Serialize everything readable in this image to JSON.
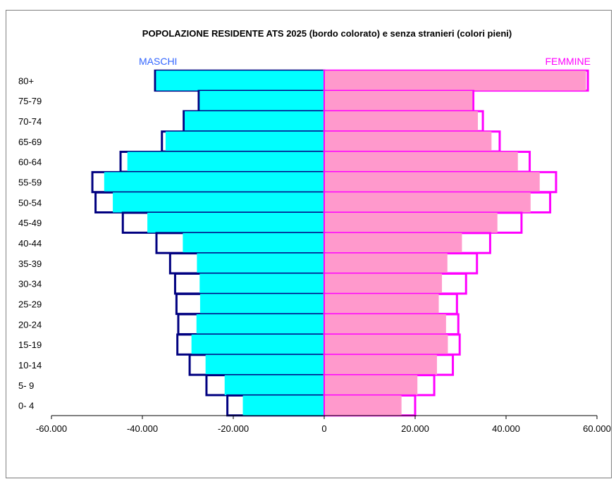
{
  "colors": {
    "male_fill": "#00FFFF",
    "male_border": "#000080",
    "female_fill": "#FF99CC",
    "female_border": "#FF00FF",
    "axis": "#000000",
    "maschi_label": "#3366FF",
    "femmine_label": "#FF00FF"
  },
  "chart_data": {
    "type": "bar",
    "orientation": "horizontal",
    "title": "POPOLAZIONE RESIDENTE ATS 2025 (bordo colorato) e senza stranieri (colori pieni)",
    "left_label": "MASCHI",
    "right_label": "FEMMINE",
    "categories": [
      "80+",
      "75-79",
      "70-74",
      "65-69",
      "60-64",
      "55-59",
      "50-54",
      "45-49",
      "40-44",
      "35-39",
      "30-34",
      "25-29",
      "20-24",
      "15-19",
      "10-14",
      "5- 9",
      "0- 4"
    ],
    "xlim": [
      -60000,
      60000
    ],
    "xticks": [
      -60000,
      -40000,
      -20000,
      0,
      20000,
      40000,
      60000
    ],
    "xtick_labels": [
      "-60.000",
      "-40.000",
      "-20.000",
      "0",
      "20.000",
      "40.000",
      "60.000"
    ],
    "series": [
      {
        "role": "male_total",
        "values": [
          -37200,
          -27600,
          -30900,
          -35700,
          -44800,
          -51000,
          -50300,
          -44300,
          -36900,
          -33900,
          -32800,
          -32500,
          -32100,
          -32300,
          -29600,
          -25900,
          -21300
        ]
      },
      {
        "role": "male_native",
        "values": [
          -37000,
          -27400,
          -30700,
          -34900,
          -43300,
          -48400,
          -46500,
          -38900,
          -31100,
          -28000,
          -27400,
          -27300,
          -28100,
          -29200,
          -26100,
          -21900,
          -17900
        ]
      },
      {
        "role": "female_total",
        "values": [
          58000,
          32800,
          34900,
          38600,
          45200,
          51000,
          49700,
          43400,
          36500,
          33600,
          31200,
          29200,
          29500,
          29800,
          28300,
          24200,
          20000
        ]
      },
      {
        "role": "female_native",
        "values": [
          57600,
          32600,
          33800,
          36800,
          42600,
          47400,
          45400,
          38100,
          30300,
          27100,
          25900,
          25200,
          26800,
          27200,
          24800,
          20500,
          17000
        ]
      }
    ],
    "grid": false,
    "legend": "none"
  }
}
